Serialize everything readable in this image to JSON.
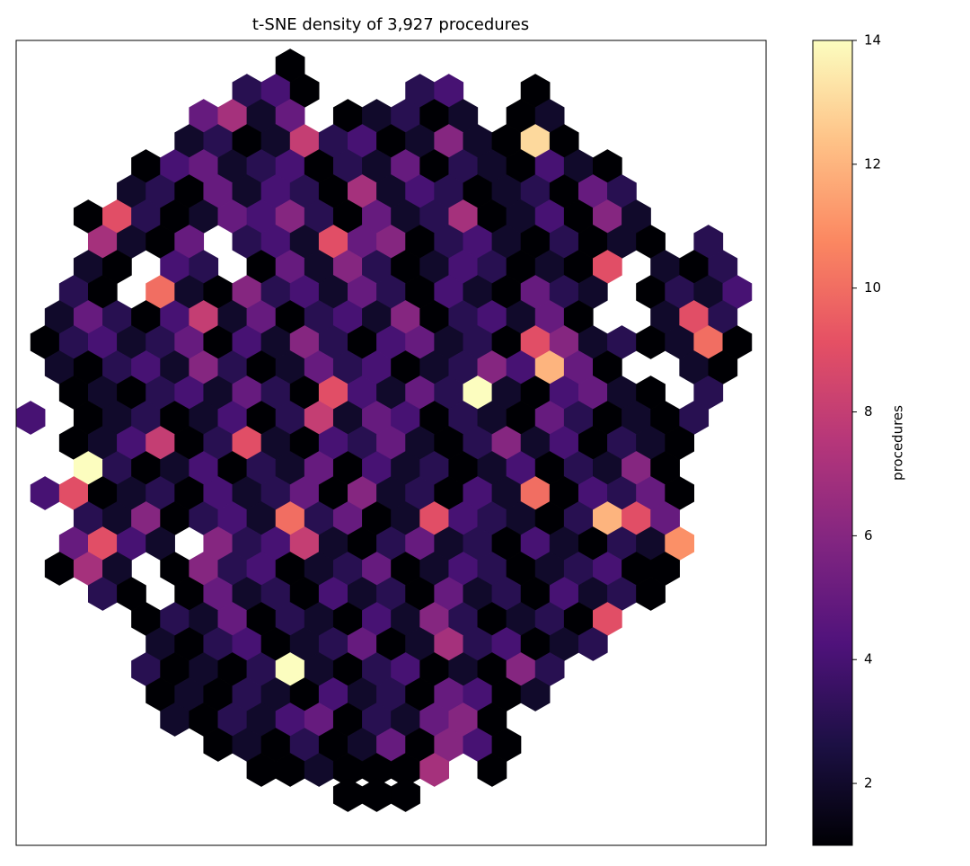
{
  "chart_data": {
    "type": "hexbin",
    "title": "t-SNE density of 3,927 procedures",
    "colorbar_label": "procedures",
    "xlim": [
      -13,
      13
    ],
    "ylim": [
      -16,
      16
    ],
    "clim": [
      1,
      14
    ],
    "cticks": [
      2,
      4,
      6,
      8,
      10,
      12,
      14
    ],
    "cmap": [
      "#000004",
      "#1c1044",
      "#4f127b",
      "#812581",
      "#b5367a",
      "#e55064",
      "#fb8761",
      "#fec287",
      "#fcfdbf"
    ],
    "rows": [
      {
        "y": 15,
        "x": [
          -3.5
        ],
        "values": [
          1
        ]
      },
      {
        "y": 14,
        "x": [
          -5,
          -4,
          -3,
          1,
          2,
          5
        ],
        "values": [
          3,
          4,
          1,
          3,
          4,
          1
        ]
      },
      {
        "y": 13,
        "x": [
          -6.5,
          -5.5,
          -4.5,
          -3.5,
          -1.5,
          -0.5,
          0.5,
          1.5,
          2.5,
          4.5,
          5.5
        ],
        "values": [
          5,
          7,
          2,
          5,
          1,
          2,
          3,
          1,
          2,
          1,
          2
        ]
      },
      {
        "y": 12,
        "x": [
          -7,
          -6,
          -5,
          -4,
          -3,
          -2,
          -1,
          0,
          1,
          2,
          3,
          4,
          5,
          6
        ],
        "values": [
          2,
          3,
          1,
          2,
          8,
          3,
          4,
          1,
          2,
          6,
          2,
          1,
          13,
          1
        ]
      },
      {
        "y": 11,
        "x": [
          -8.5,
          -7.5,
          -6.5,
          -5.5,
          -4.5,
          -3.5,
          -2.5,
          -1.5,
          -0.5,
          0.5,
          1.5,
          2.5,
          3.5,
          4.5,
          5.5,
          6.5,
          7.5
        ],
        "values": [
          1,
          4,
          5,
          2,
          3,
          4,
          1,
          3,
          2,
          5,
          1,
          3,
          2,
          1,
          4,
          2,
          1
        ]
      },
      {
        "y": 10,
        "x": [
          -9,
          -8,
          -7,
          -6,
          -5,
          -4,
          -3,
          -2,
          -1,
          0,
          1,
          2,
          3,
          4,
          5,
          6,
          7,
          8
        ],
        "values": [
          2,
          3,
          1,
          5,
          2,
          4,
          3,
          1,
          7,
          2,
          4,
          3,
          1,
          2,
          3,
          1,
          5,
          3
        ]
      },
      {
        "y": 9,
        "x": [
          -10.5,
          -9.5,
          -8.5,
          -7.5,
          -6.5,
          -5.5,
          -4.5,
          -3.5,
          -2.5,
          -1.5,
          -0.5,
          0.5,
          1.5,
          2.5,
          3.5,
          4.5,
          5.5,
          6.5,
          7.5,
          8.5
        ],
        "values": [
          1,
          9,
          3,
          1,
          2,
          5,
          4,
          6,
          3,
          1,
          5,
          2,
          3,
          7,
          1,
          2,
          4,
          1,
          6,
          2
        ]
      },
      {
        "y": 8,
        "x": [
          -10,
          -9,
          -8,
          -7,
          -5,
          -4,
          -3,
          -2,
          -1,
          0,
          1,
          2,
          3,
          4,
          5,
          6,
          7,
          8,
          9,
          11
        ],
        "values": [
          7,
          2,
          1,
          5,
          3,
          4,
          2,
          9,
          5,
          6,
          1,
          3,
          4,
          2,
          1,
          3,
          1,
          2,
          1,
          3
        ]
      },
      {
        "y": 7,
        "x": [
          -10.5,
          -9.5,
          -7.5,
          -6.5,
          -4.5,
          -3.5,
          -2.5,
          -1.5,
          -0.5,
          0.5,
          1.5,
          2.5,
          3.5,
          4.5,
          5.5,
          6.5,
          7.5,
          9.5,
          10.5,
          11.5
        ],
        "values": [
          2,
          1,
          4,
          3,
          1,
          5,
          2,
          6,
          3,
          1,
          2,
          4,
          3,
          1,
          2,
          1,
          9,
          2,
          1,
          3
        ]
      },
      {
        "y": 6,
        "x": [
          -11,
          -10,
          -8,
          -7,
          -6,
          -5,
          -4,
          -3,
          -2,
          -1,
          0,
          1,
          2,
          3,
          4,
          5,
          6,
          7,
          9,
          10,
          11,
          12
        ],
        "values": [
          3,
          1,
          10,
          2,
          1,
          6,
          3,
          4,
          2,
          5,
          3,
          1,
          4,
          2,
          1,
          5,
          3,
          2,
          1,
          3,
          2,
          4
        ]
      },
      {
        "y": 5,
        "x": [
          -11.5,
          -10.5,
          -9.5,
          -8.5,
          -7.5,
          -6.5,
          -5.5,
          -4.5,
          -3.5,
          -2.5,
          -1.5,
          -0.5,
          0.5,
          1.5,
          2.5,
          3.5,
          4.5,
          5.5,
          6.5,
          9.5,
          10.5,
          11.5
        ],
        "values": [
          2,
          5,
          3,
          1,
          4,
          8,
          2,
          5,
          1,
          3,
          4,
          2,
          6,
          1,
          3,
          4,
          2,
          5,
          1,
          2,
          9,
          3
        ]
      },
      {
        "y": 4,
        "x": [
          -12,
          -11,
          -10,
          -9,
          -8,
          -7,
          -6,
          -5,
          -4,
          -3,
          -2,
          -1,
          0,
          1,
          2,
          3,
          4,
          5,
          6,
          7,
          8,
          9,
          10,
          11,
          12
        ],
        "values": [
          1,
          3,
          4,
          2,
          3,
          5,
          1,
          4,
          2,
          6,
          3,
          1,
          4,
          5,
          2,
          3,
          1,
          9,
          6,
          2,
          3,
          1,
          2,
          10,
          1
        ]
      },
      {
        "y": 3,
        "x": [
          -11.5,
          -10.5,
          -9.5,
          -8.5,
          -7.5,
          -6.5,
          -5.5,
          -4.5,
          -3.5,
          -2.5,
          -1.5,
          -0.5,
          0.5,
          1.5,
          2.5,
          3.5,
          4.5,
          5.5,
          6.5,
          7.5,
          10.5,
          11.5
        ],
        "values": [
          2,
          1,
          3,
          4,
          2,
          6,
          3,
          1,
          2,
          5,
          3,
          4,
          1,
          2,
          3,
          6,
          4,
          12,
          5,
          1,
          2,
          1
        ]
      },
      {
        "y": 2,
        "x": [
          -11,
          -10,
          -9,
          -8,
          -7,
          -6,
          -5,
          -4,
          -3,
          -2,
          -1,
          0,
          1,
          2,
          3,
          4,
          5,
          6,
          7,
          8,
          9,
          11
        ],
        "values": [
          1,
          2,
          1,
          3,
          4,
          2,
          5,
          3,
          1,
          9,
          4,
          2,
          5,
          3,
          14,
          2,
          1,
          4,
          5,
          2,
          1,
          3
        ]
      },
      {
        "y": 1,
        "x": [
          -12.5,
          -10.5,
          -9.5,
          -8.5,
          -7.5,
          -6.5,
          -5.5,
          -4.5,
          -3.5,
          -2.5,
          -1.5,
          -0.5,
          0.5,
          1.5,
          2.5,
          3.5,
          4.5,
          5.5,
          6.5,
          7.5,
          8.5,
          9.5,
          10.5
        ],
        "values": [
          4,
          1,
          2,
          3,
          1,
          2,
          4,
          1,
          3,
          8,
          2,
          5,
          4,
          1,
          3,
          2,
          1,
          5,
          3,
          1,
          2,
          1,
          3
        ]
      },
      {
        "y": 0,
        "x": [
          -11,
          -10,
          -9,
          -8,
          -7,
          -6,
          -5,
          -4,
          -3,
          -2,
          -1,
          0,
          1,
          2,
          3,
          4,
          5,
          6,
          7,
          8,
          9,
          10
        ],
        "values": [
          1,
          2,
          4,
          8,
          1,
          3,
          9,
          2,
          1,
          4,
          3,
          5,
          2,
          1,
          3,
          6,
          2,
          4,
          1,
          3,
          2,
          1
        ]
      },
      {
        "y": -1,
        "x": [
          -10.5,
          -9.5,
          -8.5,
          -7.5,
          -6.5,
          -5.5,
          -4.5,
          -3.5,
          -2.5,
          -1.5,
          -0.5,
          0.5,
          1.5,
          2.5,
          3.5,
          4.5,
          5.5,
          6.5,
          7.5,
          8.5,
          9.5
        ],
        "values": [
          14,
          3,
          1,
          2,
          4,
          1,
          3,
          2,
          5,
          1,
          4,
          2,
          3,
          1,
          2,
          4,
          1,
          3,
          2,
          6,
          1
        ]
      },
      {
        "y": -2,
        "x": [
          -12,
          -11,
          -10,
          -9,
          -8,
          -7,
          -6,
          -5,
          -4,
          -3,
          -2,
          -1,
          0,
          1,
          2,
          3,
          4,
          5,
          6,
          7,
          8,
          9,
          10
        ],
        "values": [
          4,
          9,
          1,
          2,
          3,
          1,
          4,
          2,
          3,
          5,
          1,
          6,
          2,
          3,
          1,
          4,
          2,
          10,
          1,
          4,
          3,
          5,
          1
        ]
      },
      {
        "y": -3,
        "x": [
          -10.5,
          -9.5,
          -8.5,
          -7.5,
          -6.5,
          -5.5,
          -4.5,
          -3.5,
          -2.5,
          -1.5,
          -0.5,
          0.5,
          1.5,
          2.5,
          3.5,
          4.5,
          5.5,
          6.5,
          7.5,
          8.5,
          9.5
        ],
        "values": [
          3,
          2,
          6,
          1,
          3,
          4,
          2,
          10,
          3,
          5,
          1,
          2,
          9,
          4,
          3,
          2,
          1,
          3,
          12,
          9,
          5
        ]
      },
      {
        "y": -4,
        "x": [
          -11,
          -10,
          -9,
          -8,
          -6,
          -5,
          -4,
          -3,
          -2,
          -1,
          0,
          1,
          2,
          3,
          4,
          5,
          6,
          7,
          8,
          9,
          10
        ],
        "values": [
          5,
          9,
          4,
          2,
          6,
          3,
          4,
          8,
          2,
          1,
          3,
          5,
          2,
          3,
          1,
          4,
          2,
          1,
          3,
          2,
          11
        ]
      },
      {
        "y": -5,
        "x": [
          -11.5,
          -10.5,
          -9.5,
          -7.5,
          -6.5,
          -5.5,
          -4.5,
          -3.5,
          -2.5,
          -1.5,
          -0.5,
          0.5,
          1.5,
          2.5,
          3.5,
          4.5,
          5.5,
          6.5,
          7.5,
          8.5,
          9.5
        ],
        "values": [
          1,
          7,
          2,
          1,
          6,
          3,
          4,
          1,
          2,
          3,
          5,
          1,
          2,
          4,
          3,
          1,
          2,
          3,
          4,
          1,
          1
        ]
      },
      {
        "y": -6,
        "x": [
          -10,
          -9,
          -7,
          -6,
          -5,
          -4,
          -3,
          -2,
          -1,
          0,
          1,
          2,
          3,
          4,
          5,
          6,
          7,
          8,
          9
        ],
        "values": [
          3,
          1,
          1,
          5,
          2,
          3,
          1,
          4,
          2,
          3,
          1,
          5,
          2,
          3,
          1,
          4,
          2,
          3,
          1
        ]
      },
      {
        "y": -7,
        "x": [
          -8.5,
          -7.5,
          -6.5,
          -5.5,
          -4.5,
          -3.5,
          -2.5,
          -1.5,
          -0.5,
          0.5,
          1.5,
          2.5,
          3.5,
          4.5,
          5.5,
          6.5,
          7.5
        ],
        "values": [
          1,
          3,
          2,
          5,
          1,
          3,
          2,
          1,
          4,
          2,
          6,
          3,
          1,
          2,
          3,
          1,
          9
        ]
      },
      {
        "y": -8,
        "x": [
          -8,
          -7,
          -6,
          -5,
          -4,
          -3,
          -2,
          -1,
          0,
          1,
          2,
          3,
          4,
          5,
          6,
          7
        ],
        "values": [
          2,
          1,
          3,
          4,
          1,
          2,
          3,
          5,
          1,
          2,
          7,
          3,
          4,
          1,
          2,
          3
        ]
      },
      {
        "y": -9,
        "x": [
          -8.5,
          -7.5,
          -6.5,
          -5.5,
          -4.5,
          -3.5,
          -2.5,
          -1.5,
          -0.5,
          0.5,
          1.5,
          2.5,
          3.5,
          4.5,
          5.5
        ],
        "values": [
          3,
          1,
          2,
          1,
          3,
          14,
          2,
          1,
          3,
          4,
          1,
          2,
          1,
          6,
          3
        ]
      },
      {
        "y": -10,
        "x": [
          -8,
          -7,
          -6,
          -5,
          -4,
          -3,
          -2,
          -1,
          0,
          1,
          2,
          3,
          4,
          5
        ],
        "values": [
          1,
          2,
          1,
          3,
          2,
          1,
          4,
          2,
          3,
          1,
          5,
          4,
          1,
          2
        ]
      },
      {
        "y": -11,
        "x": [
          -7.5,
          -6.5,
          -5.5,
          -4.5,
          -3.5,
          -2.5,
          -1.5,
          -0.5,
          0.5,
          1.5,
          2.5,
          3.5
        ],
        "values": [
          2,
          1,
          3,
          2,
          4,
          5,
          1,
          3,
          2,
          5,
          6,
          1
        ]
      },
      {
        "y": -12,
        "x": [
          -6,
          -5,
          -4,
          -3,
          -2,
          -1,
          0,
          1,
          2,
          3,
          4
        ],
        "values": [
          1,
          2,
          1,
          3,
          1,
          2,
          5,
          1,
          6,
          4,
          1
        ]
      },
      {
        "y": -13,
        "x": [
          -4.5,
          -3.5,
          -2.5,
          -1.5,
          -0.5,
          0.5,
          1.5,
          3.5
        ],
        "values": [
          1,
          1,
          2,
          1,
          1,
          1,
          7,
          1
        ]
      },
      {
        "y": -14,
        "x": [
          -1.5,
          -0.5,
          0.5
        ],
        "values": [
          1,
          1,
          1
        ]
      }
    ]
  }
}
